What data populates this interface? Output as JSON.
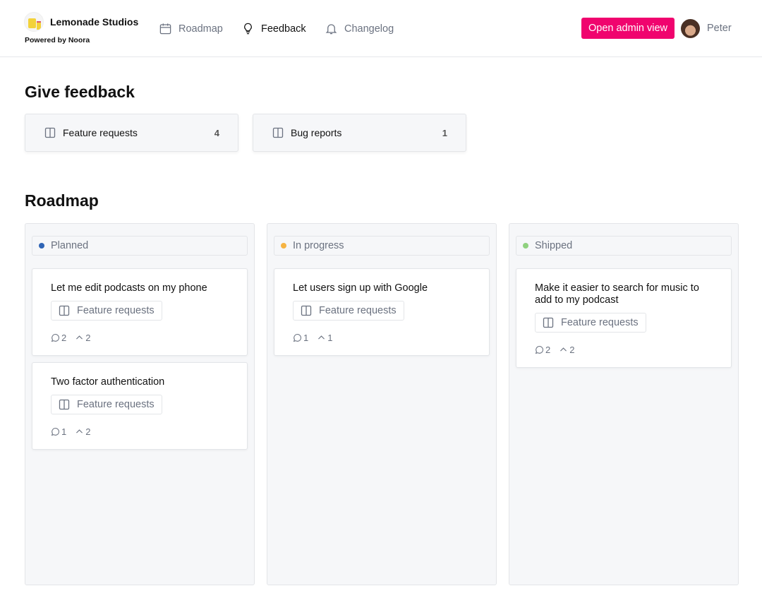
{
  "header": {
    "brand": "Lemonade Studios",
    "powered": "Powered by Noora",
    "nav": [
      {
        "label": "Roadmap",
        "icon": "calendar-icon"
      },
      {
        "label": "Feedback",
        "icon": "lightbulb-icon",
        "active": true
      },
      {
        "label": "Changelog",
        "icon": "bell-icon"
      }
    ],
    "admin_button": "Open admin view",
    "user": "Peter",
    "accent": "#f0046e"
  },
  "feedback": {
    "title": "Give feedback",
    "boards": [
      {
        "label": "Feature requests",
        "count": "4"
      },
      {
        "label": "Bug reports",
        "count": "1"
      }
    ]
  },
  "roadmap": {
    "title": "Roadmap",
    "columns": [
      {
        "status": "Planned",
        "color": "#2f64b5",
        "cards": [
          {
            "title": "Let me edit podcasts on my phone",
            "board": "Feature requests",
            "comments": "2",
            "votes": "2"
          },
          {
            "title": "Two factor authentication",
            "board": "Feature requests",
            "comments": "1",
            "votes": "2"
          }
        ]
      },
      {
        "status": "In progress",
        "color": "#f6b443",
        "cards": [
          {
            "title": "Let users sign up with Google",
            "board": "Feature requests",
            "comments": "1",
            "votes": "1"
          }
        ]
      },
      {
        "status": "Shipped",
        "color": "#8fd17f",
        "cards": [
          {
            "title": "Make it easier to search for music to add to my podcast",
            "board": "Feature requests",
            "comments": "2",
            "votes": "2"
          }
        ]
      }
    ]
  }
}
